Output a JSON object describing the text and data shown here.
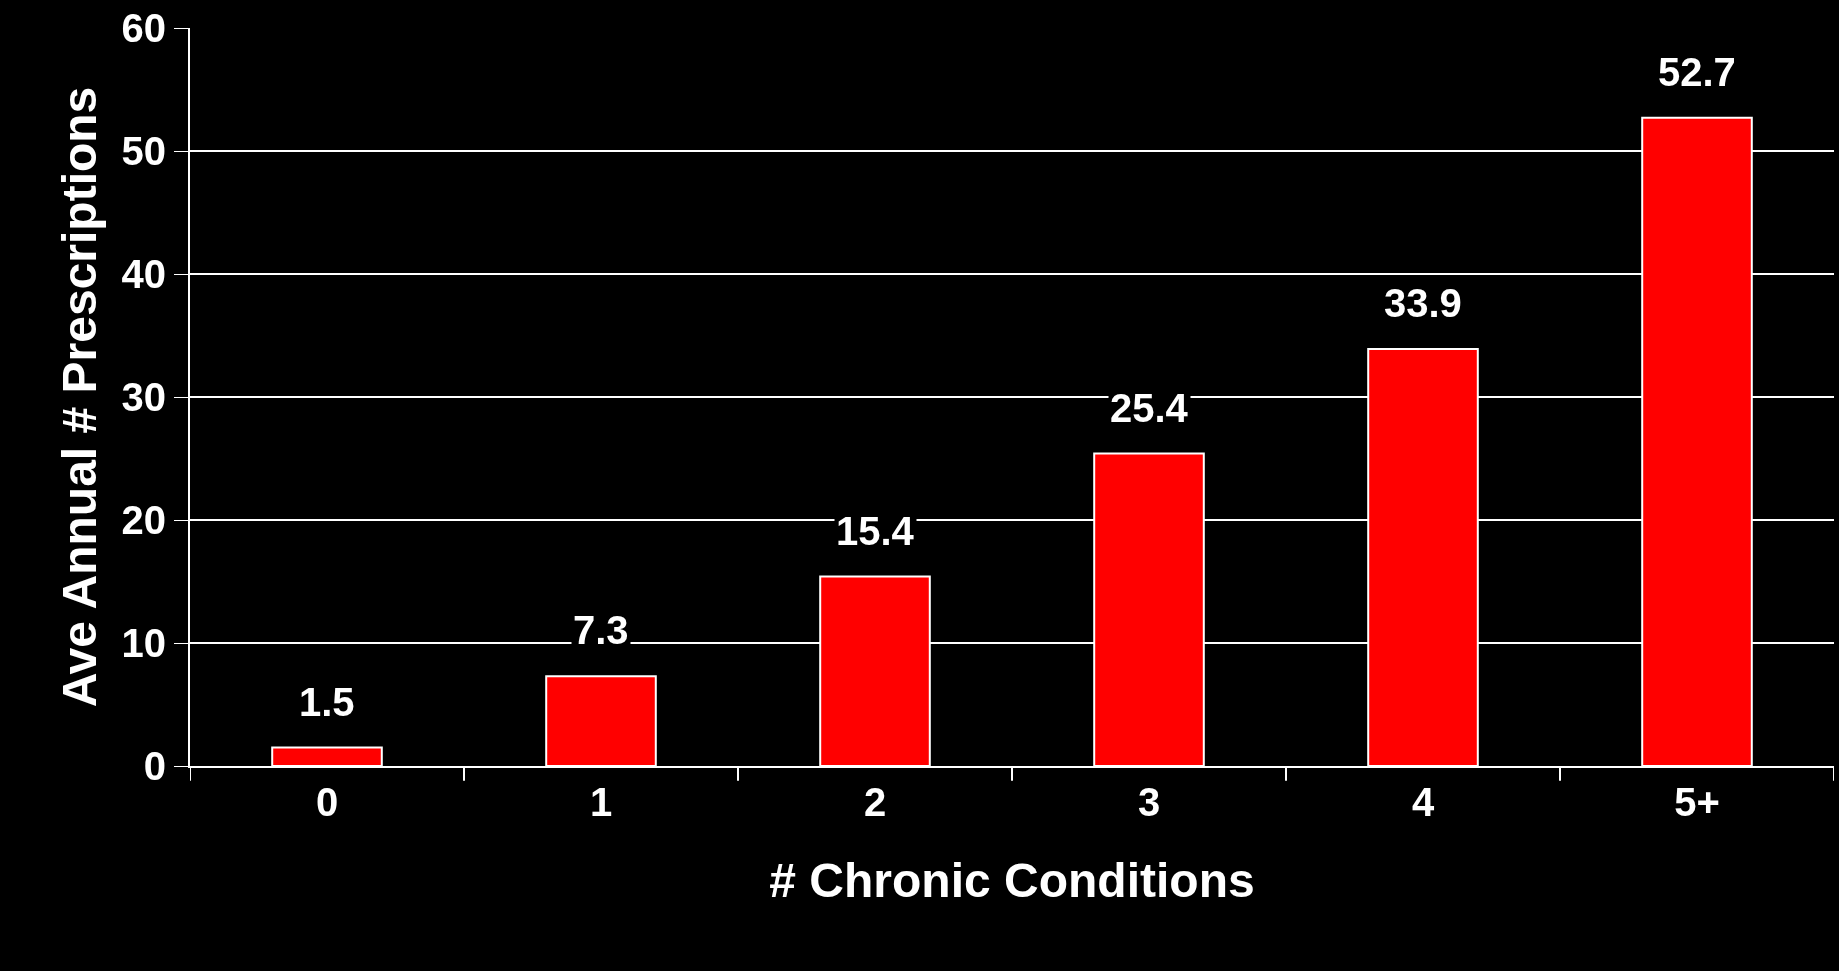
{
  "chart_data": {
    "type": "bar",
    "xlabel": "# Chronic Conditions",
    "ylabel": "Ave Annual # Prescriptions",
    "categories": [
      "0",
      "1",
      "2",
      "3",
      "4",
      "5+"
    ],
    "values": [
      1.5,
      7.3,
      15.4,
      25.4,
      33.9,
      52.7
    ],
    "color": "#ff0000",
    "ylim": [
      0,
      60
    ],
    "yticks": [
      0,
      10,
      20,
      30,
      40,
      50,
      60
    ],
    "grid": "y",
    "data_labels": true
  }
}
